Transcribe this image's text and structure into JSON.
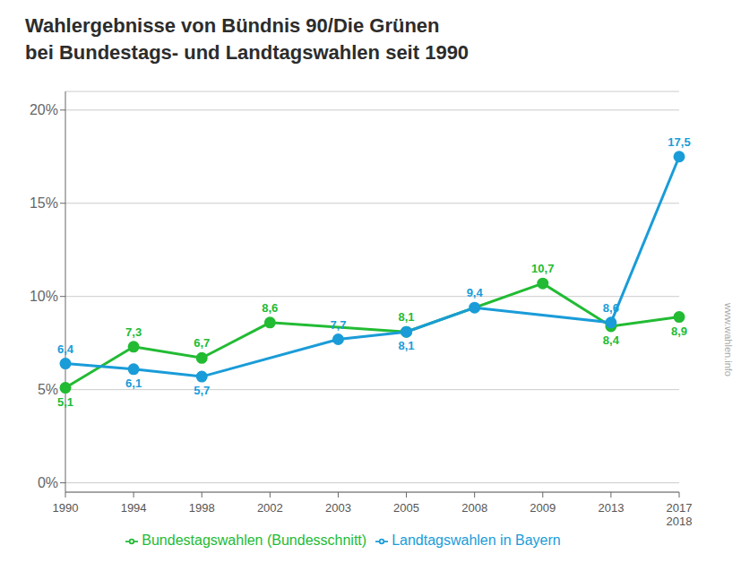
{
  "chart_data": {
    "type": "line",
    "title": "Wahlergebnisse von Bündnis 90/Die Grünen",
    "subtitle": "bei Bundestags- und Landtagswahlen seit 1990",
    "annotations": [
      "www.wahlen.info"
    ],
    "categories": [
      "1990",
      "1994",
      "1998",
      "2002",
      "2003",
      "2005",
      "2008",
      "2009",
      "2013",
      "2017\n2018"
    ],
    "series": [
      {
        "name": "Bundestagswahlen (Bundesschnitt)",
        "color": "#22bb33",
        "marker": "circle",
        "values": [
          5.1,
          7.3,
          6.7,
          8.6,
          null,
          8.1,
          null,
          10.7,
          8.4,
          8.9
        ],
        "value_labels": [
          "5,1",
          "7,3",
          "6,7",
          "8,6",
          null,
          "8,1",
          null,
          "10,7",
          "8,4",
          "8,9"
        ]
      },
      {
        "name": "Landtagswahlen in Bayern",
        "color": "#1a9cd8",
        "marker": "circle",
        "values": [
          6.4,
          6.1,
          5.7,
          null,
          7.7,
          8.1,
          9.4,
          null,
          8.6,
          17.5
        ],
        "value_labels": [
          "6,4",
          "6,1",
          "5,7",
          null,
          "7,7",
          "8,1",
          "9,4",
          null,
          "8,6",
          "17,5"
        ]
      }
    ],
    "ylim": [
      -0.5,
      21
    ],
    "yticks": [
      {
        "value": 0,
        "label": "0%"
      },
      {
        "value": 5,
        "label": "5%"
      },
      {
        "value": 10,
        "label": "10%"
      },
      {
        "value": 15,
        "label": "15%"
      },
      {
        "value": 20,
        "label": "20%"
      }
    ],
    "grid": true,
    "legend": "bottom",
    "data_labels": true
  }
}
